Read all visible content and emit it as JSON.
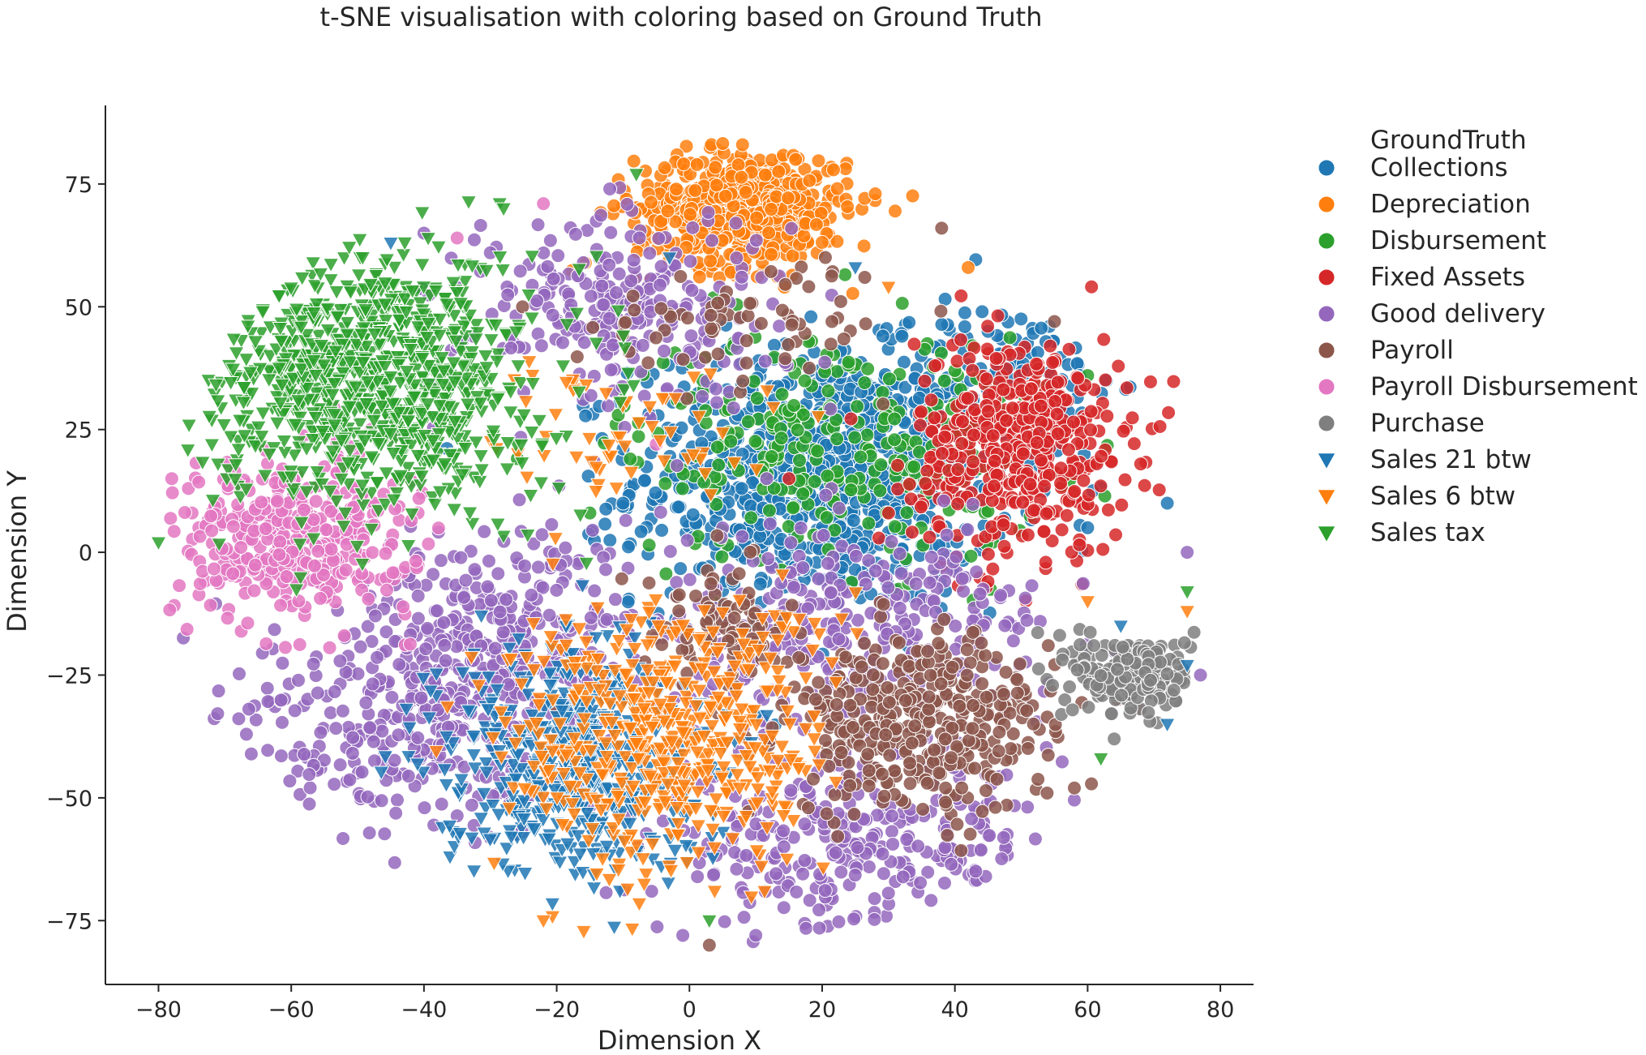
{
  "chart_data": {
    "type": "scatter",
    "title": "t-SNE visualisation with coloring based on Ground Truth",
    "xlabel": "Dimension X",
    "ylabel": "Dimension Y",
    "xlim": [
      -88,
      85
    ],
    "ylim": [
      -88,
      91
    ],
    "xticks": [
      -80,
      -60,
      -40,
      -20,
      0,
      20,
      40,
      60,
      80
    ],
    "yticks": [
      -75,
      -50,
      -25,
      0,
      25,
      50,
      75
    ],
    "xtick_labels": [
      "−80",
      "−60",
      "−40",
      "−20",
      "0",
      "20",
      "40",
      "60",
      "80"
    ],
    "ytick_labels": [
      "−75",
      "−50",
      "−25",
      "0",
      "25",
      "50",
      "75"
    ],
    "grid": false,
    "legend": {
      "title": "GroundTruth",
      "placement": "outside-right"
    },
    "series": [
      {
        "name": "Collections",
        "marker": "circle",
        "color": "#1f77b4",
        "clusters": [
          {
            "cx": 20,
            "cy": 15,
            "sx": 14,
            "sy": 13,
            "n": 900
          },
          {
            "cx": 48,
            "cy": 35,
            "sx": 8,
            "sy": 8,
            "n": 120
          }
        ],
        "points": [
          [
            8,
            20
          ],
          [
            20,
            5
          ],
          [
            35,
            15
          ],
          [
            -10,
            10
          ],
          [
            45,
            45
          ],
          [
            60,
            5
          ],
          [
            72,
            10
          ]
        ]
      },
      {
        "name": "Depreciation",
        "marker": "circle",
        "color": "#ff7f0e",
        "clusters": [
          {
            "cx": 8,
            "cy": 70,
            "sx": 8,
            "sy": 6,
            "n": 550
          }
        ],
        "points": [
          [
            8,
            83
          ],
          [
            16,
            80
          ],
          [
            28,
            73
          ],
          [
            42,
            58
          ]
        ]
      },
      {
        "name": "Disbursement",
        "marker": "circle",
        "color": "#2ca02c",
        "clusters": [
          {
            "cx": 22,
            "cy": 22,
            "sx": 16,
            "sy": 12,
            "n": 300
          }
        ],
        "points": [
          [
            40,
            37
          ],
          [
            -15,
            8
          ],
          [
            2,
            35
          ],
          [
            60,
            36
          ]
        ]
      },
      {
        "name": "Fixed Assets",
        "marker": "circle",
        "color": "#d62728",
        "clusters": [
          {
            "cx": 50,
            "cy": 22,
            "sx": 8,
            "sy": 11,
            "n": 450
          }
        ],
        "points": [
          [
            37,
            38
          ],
          [
            68,
            18
          ],
          [
            15,
            15
          ],
          [
            30,
            8
          ]
        ]
      },
      {
        "name": "Good delivery",
        "marker": "circle",
        "color": "#9467bd",
        "clusters": [
          {
            "cx": -30,
            "cy": -20,
            "sx": 15,
            "sy": 12,
            "n": 400
          },
          {
            "cx": 25,
            "cy": -60,
            "sx": 15,
            "sy": 9,
            "n": 300
          },
          {
            "cx": 25,
            "cy": -15,
            "sx": 15,
            "sy": 10,
            "n": 300
          },
          {
            "cx": -10,
            "cy": 50,
            "sx": 12,
            "sy": 10,
            "n": 250
          },
          {
            "cx": -45,
            "cy": -40,
            "sx": 15,
            "sy": 10,
            "n": 200
          }
        ],
        "points": [
          [
            -40,
            65
          ],
          [
            -30,
            61
          ],
          [
            -12,
            74
          ],
          [
            75,
            0
          ],
          [
            77,
            -25
          ],
          [
            -1,
            -78
          ],
          [
            10,
            -78
          ]
        ]
      },
      {
        "name": "Payroll",
        "marker": "circle",
        "color": "#8c564b",
        "clusters": [
          {
            "cx": 35,
            "cy": -35,
            "sx": 10,
            "sy": 9,
            "n": 400
          },
          {
            "cx": 5,
            "cy": -15,
            "sx": 6,
            "sy": 6,
            "n": 80
          },
          {
            "cx": 10,
            "cy": 48,
            "sx": 12,
            "sy": 6,
            "n": 70
          }
        ],
        "points": [
          [
            38,
            66
          ],
          [
            -20,
            -32
          ],
          [
            58,
            -48
          ],
          [
            3,
            -80
          ],
          [
            55,
            47
          ]
        ]
      },
      {
        "name": "Payroll Disbursement",
        "marker": "circle",
        "color": "#e377c2",
        "clusters": [
          {
            "cx": -60,
            "cy": 3,
            "sx": 9,
            "sy": 8,
            "n": 380
          }
        ],
        "points": [
          [
            -78,
            15
          ],
          [
            -22,
            71
          ],
          [
            -35,
            64
          ],
          [
            -5,
            22
          ]
        ]
      },
      {
        "name": "Purchase",
        "marker": "circle",
        "color": "#7f7f7f",
        "clusters": [
          {
            "cx": 67,
            "cy": -25,
            "sx": 4.5,
            "sy": 4,
            "n": 230
          }
        ],
        "points": [
          [
            64,
            -38
          ]
        ]
      },
      {
        "name": "Sales 21 btw",
        "marker": "triangle-down",
        "color": "#1f77b4",
        "clusters": [
          {
            "cx": -18,
            "cy": -42,
            "sx": 10,
            "sy": 12,
            "n": 500
          }
        ],
        "points": [
          [
            -45,
            63
          ],
          [
            -3,
            60
          ],
          [
            25,
            58
          ],
          [
            72,
            -35
          ],
          [
            65,
            -15
          ],
          [
            75,
            -23
          ]
        ]
      },
      {
        "name": "Sales 6 btw",
        "marker": "triangle-down",
        "color": "#ff7f0e",
        "clusters": [
          {
            "cx": -3,
            "cy": -38,
            "sx": 12,
            "sy": 14,
            "n": 500
          },
          {
            "cx": -10,
            "cy": 25,
            "sx": 14,
            "sy": 8,
            "n": 60
          }
        ],
        "points": [
          [
            -22,
            -75
          ],
          [
            30,
            54
          ],
          [
            60,
            -10
          ],
          [
            75,
            -12
          ]
        ]
      },
      {
        "name": "Sales tax",
        "marker": "triangle-down",
        "color": "#2ca02c",
        "clusters": [
          {
            "cx": -48,
            "cy": 35,
            "sx": 12,
            "sy": 13,
            "n": 900
          }
        ],
        "points": [
          [
            -80,
            2
          ],
          [
            -28,
            70
          ],
          [
            -8,
            77
          ],
          [
            75,
            -8
          ],
          [
            62,
            -42
          ],
          [
            3,
            -75
          ]
        ]
      }
    ]
  }
}
